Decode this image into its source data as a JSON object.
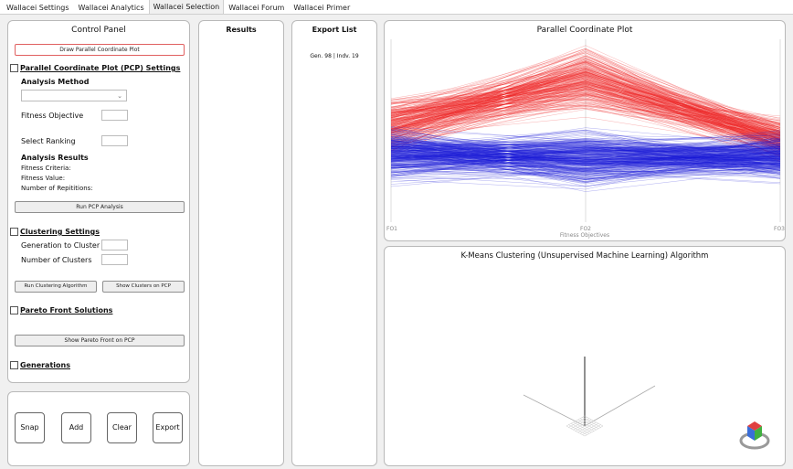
{
  "tabs": [
    "Wallacei Settings",
    "Wallacei Analytics",
    "Wallacei Selection",
    "Wallacei Forum",
    "Wallacei Primer"
  ],
  "active_tab": 2,
  "control_panel": {
    "title": "Control Panel",
    "draw_pcp_button": "Draw Parallel Coordinate Plot",
    "pcp_settings": {
      "heading": "Parallel Coordinate Plot (PCP) Settings",
      "analysis_method_label": "Analysis Method",
      "analysis_method_value": "",
      "fitness_objective_label": "Fitness Objective",
      "select_ranking_label": "Select Ranking",
      "analysis_results_label": "Analysis Results",
      "fitness_criteria_label": "Fitness Criteria:",
      "fitness_value_label": "Fitness Value:",
      "repetitions_label": "Number of Repititions:",
      "run_button": "Run PCP Analysis"
    },
    "clustering": {
      "heading": "Clustering Settings",
      "generation_label": "Generation to Cluster",
      "clusters_label": "Number of Clusters",
      "run_button": "Run Clustering Algorithm",
      "show_button": "Show Clusters on PCP"
    },
    "pareto": {
      "heading": "Pareto Front Solutions",
      "show_button": "Show Pareto Front on PCP"
    },
    "generations": {
      "heading": "Generations"
    }
  },
  "bottom_buttons": {
    "snap": "Snap",
    "add": "Add",
    "clear": "Clear",
    "export": "Export"
  },
  "results": {
    "title": "Results"
  },
  "export_list": {
    "title": "Export List",
    "items": [
      "Gen. 98 | Indv. 19"
    ]
  },
  "pcp_plot": {
    "title": "Parallel Coordinate Plot",
    "axes": [
      "FO1",
      "FO2",
      "FO3"
    ],
    "xlabel": "Fitness Objectives",
    "colors": {
      "red": "#ee2222",
      "blue": "#1a1ad6"
    }
  },
  "kmeans": {
    "title": "K-Means Clustering (Unsupervised Machine Learning) Algorithm"
  }
}
